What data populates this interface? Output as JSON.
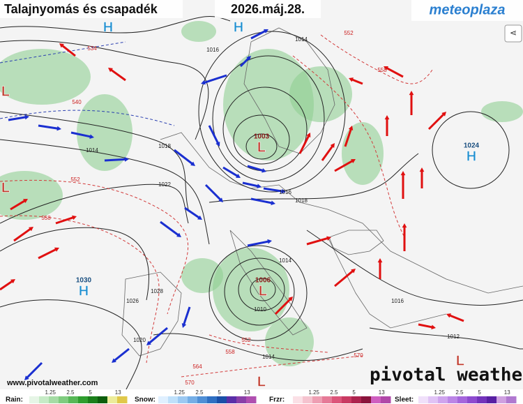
{
  "header": {
    "title": "Talajnyomás és csapadék",
    "date": "2026.máj.28.",
    "logo": "meteoplaza"
  },
  "pressure_centers": [
    {
      "letter": "H"
    },
    {
      "letter": "H"
    },
    {
      "letter": "L"
    },
    {
      "letter": "L"
    },
    {
      "letter": "L",
      "value": "1003"
    },
    {
      "letter": "H",
      "value": "1024"
    },
    {
      "letter": "H",
      "value": "1030"
    },
    {
      "letter": "L",
      "value": "1006"
    },
    {
      "letter": "L"
    },
    {
      "letter": "L"
    }
  ],
  "isobar_labels": [
    "1016",
    "1014",
    "1014",
    "1018",
    "1022",
    "1016",
    "1018",
    "1014",
    "1010",
    "1028",
    "1026",
    "1020",
    "1014",
    "1016",
    "1012"
  ],
  "thickness_labels": [
    "534",
    "540",
    "552",
    "558",
    "552",
    "558",
    "552",
    "558",
    "564",
    "570",
    "570"
  ],
  "footer": {
    "url": "www.pivotalweather.com",
    "brand": "pivotal weather"
  },
  "legend": [
    {
      "name": "Rain:",
      "ticks": [
        1.25,
        2.5,
        5,
        13
      ]
    },
    {
      "name": "Snow:",
      "ticks": [
        1.25,
        2.5,
        5,
        13
      ]
    },
    {
      "name": "Frzr:",
      "ticks": [
        1.25,
        2.5,
        5,
        13
      ]
    },
    {
      "name": "Sleet:",
      "ticks": [
        1.25,
        2.5,
        5,
        13
      ]
    }
  ]
}
